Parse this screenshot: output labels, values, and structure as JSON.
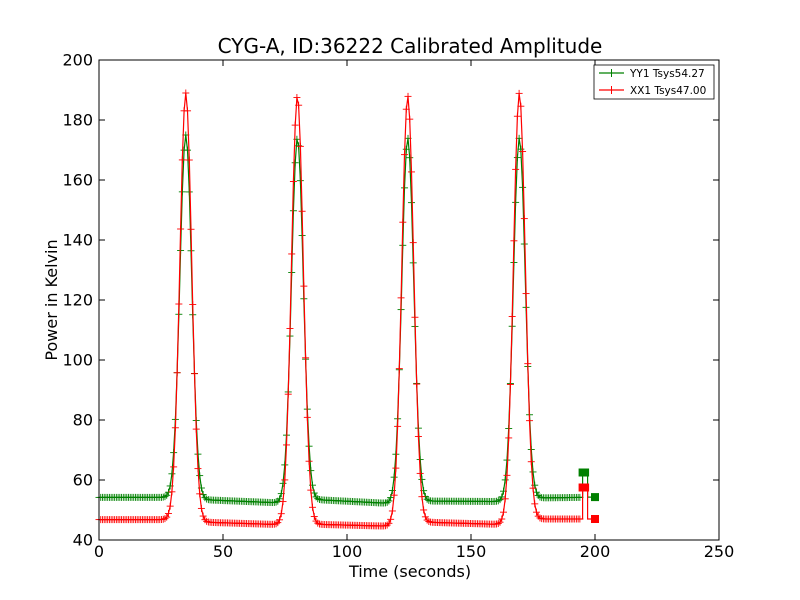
{
  "chart_data": {
    "type": "line",
    "title": "CYG-A, ID:36222 Calibrated Amplitude",
    "xlabel": "Time (seconds)",
    "ylabel": "Power in Kelvin",
    "xlim": [
      0,
      250
    ],
    "ylim": [
      40,
      200
    ],
    "xticks": [
      "0",
      "50",
      "100",
      "150",
      "200",
      "250"
    ],
    "yticks": [
      "40",
      "60",
      "80",
      "100",
      "120",
      "140",
      "160",
      "180",
      "200"
    ],
    "grid": false,
    "legend_position": "top-right",
    "baseline_segments": [
      {
        "x": [
          0,
          28,
          40,
          78,
          84,
          122,
          129,
          166,
          175,
          194
        ],
        "YY1": [
          54.2,
          54.2,
          53.5,
          52.2,
          53.6,
          52.0,
          53.0,
          52.8,
          54.0,
          54.2
        ],
        "XX1": [
          46.8,
          46.8,
          46.0,
          45.0,
          45.3,
          44.5,
          46.0,
          45.1,
          47.0,
          47.0
        ]
      }
    ],
    "peaks": [
      {
        "x": 35,
        "YY1": 175,
        "XX1": 189
      },
      {
        "x": 80,
        "YY1": 174,
        "XX1": 188
      },
      {
        "x": 124.5,
        "YY1": 174,
        "XX1": 188
      },
      {
        "x": 169.5,
        "YY1": 174,
        "XX1": 189
      }
    ],
    "tail": {
      "x": [
        195,
        200
      ],
      "YY1": [
        62.5,
        54.3
      ],
      "XX1": [
        57.5,
        47.0
      ]
    },
    "series": [
      {
        "name": "YY1 Tsys54.27",
        "color": "#008000"
      },
      {
        "name": "XX1 Tsys47.00",
        "color": "#ff0000"
      }
    ]
  }
}
